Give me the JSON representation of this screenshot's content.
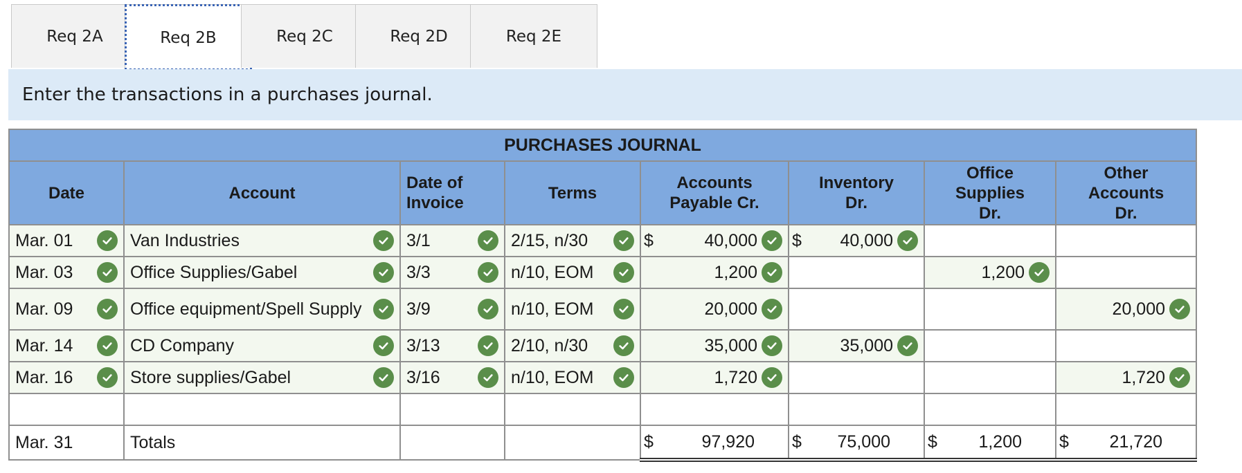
{
  "tabs": [
    {
      "label": "Req 2A",
      "active": false
    },
    {
      "label": "Req 2B",
      "active": true
    },
    {
      "label": "Req 2C",
      "active": false
    },
    {
      "label": "Req 2D",
      "active": false
    },
    {
      "label": "Req 2E",
      "active": false
    }
  ],
  "instruction": "Enter the transactions in a purchases journal.",
  "journal": {
    "title": "PURCHASES JOURNAL",
    "headers": {
      "date": "Date",
      "account": "Account",
      "date_of_invoice_1": "Date of",
      "date_of_invoice_2": "Invoice",
      "terms": "Terms",
      "ap_1": "Accounts",
      "ap_2": "Payable Cr.",
      "inv_1": "Inventory",
      "inv_2": "Dr.",
      "os_1": "Office",
      "os_2": "Supplies",
      "os_3": "Dr.",
      "oa_1": "Other",
      "oa_2": "Accounts",
      "oa_3": "Dr."
    },
    "rows": [
      {
        "date": "Mar. 01",
        "account": "Van Industries",
        "invoice": "3/1",
        "terms": "2/15, n/30",
        "ap": "40,000",
        "inventory": "40,000",
        "office": "",
        "other": ""
      },
      {
        "date": "Mar. 03",
        "account": "Office Supplies/Gabel",
        "invoice": "3/3",
        "terms": "n/10, EOM",
        "ap": "1,200",
        "inventory": "",
        "office": "1,200",
        "other": ""
      },
      {
        "date": "Mar. 09",
        "account": "Office equipment/Spell Supply",
        "invoice": "3/9",
        "terms": "n/10, EOM",
        "ap": "20,000",
        "inventory": "",
        "office": "",
        "other": "20,000"
      },
      {
        "date": "Mar. 14",
        "account": "CD Company",
        "invoice": "3/13",
        "terms": "2/10, n/30",
        "ap": "35,000",
        "inventory": "35,000",
        "office": "",
        "other": ""
      },
      {
        "date": "Mar. 16",
        "account": "Store supplies/Gabel",
        "invoice": "3/16",
        "terms": "n/10, EOM",
        "ap": "1,720",
        "inventory": "",
        "office": "",
        "other": "1,720"
      }
    ],
    "totals": {
      "date": "Mar. 31",
      "label": "Totals",
      "currency": "$",
      "ap": "97,920",
      "inventory": "75,000",
      "office": "1,200",
      "other": "21,720"
    },
    "currency_symbol": "$"
  },
  "colors": {
    "header_blue": "#7fa9df",
    "instruction_bg": "#dceaf7",
    "check_green": "#5a8e4a"
  }
}
